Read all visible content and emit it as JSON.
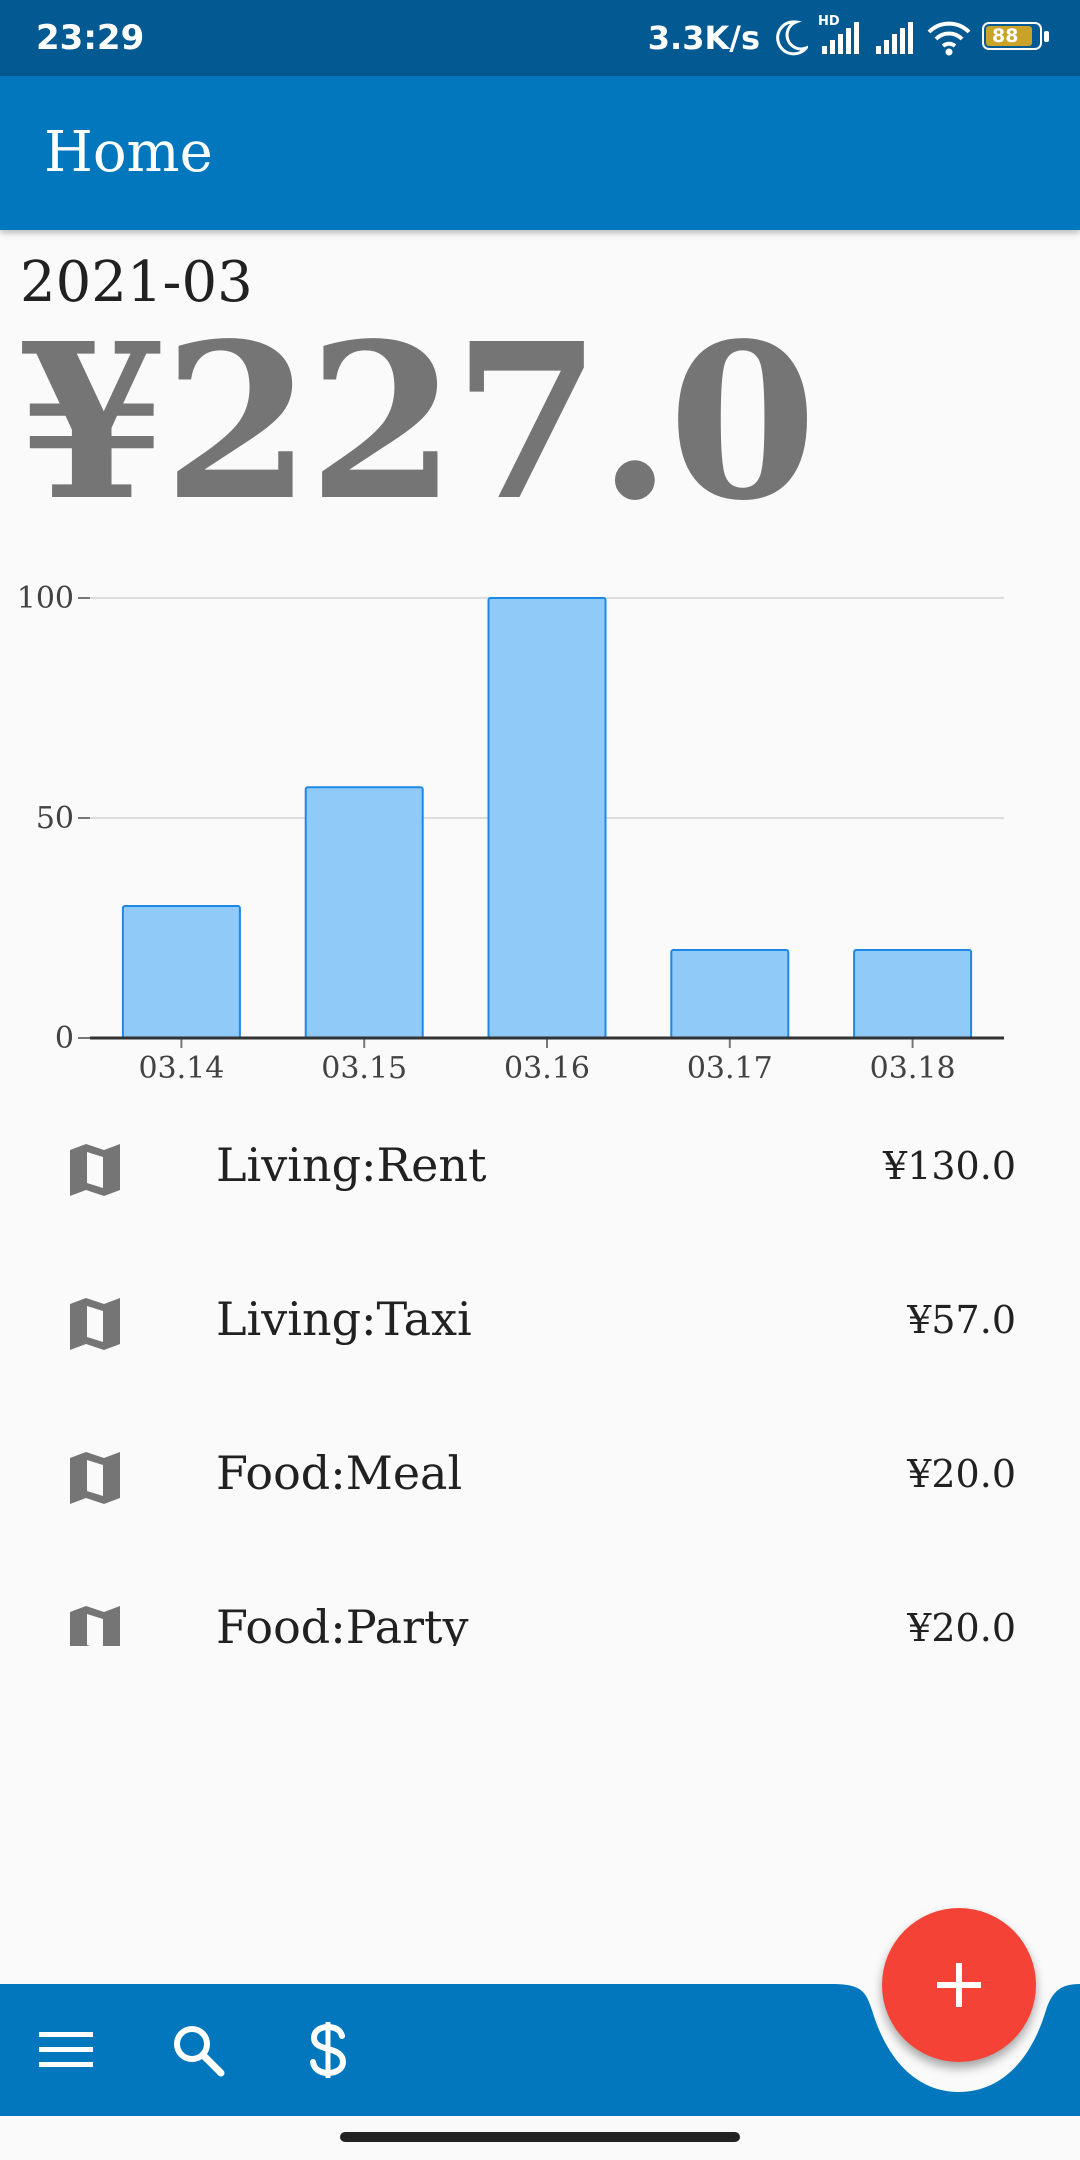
{
  "status_bar": {
    "time": "23:29",
    "net_speed": "3.3K/s",
    "hd_badge": "HD",
    "battery": "88",
    "icons": [
      "moon-icon",
      "signal-icon",
      "wifi-icon",
      "battery-icon"
    ]
  },
  "app_bar": {
    "title": "Home"
  },
  "summary": {
    "month": "2021-03",
    "total": "¥227.0"
  },
  "chart_data": {
    "type": "bar",
    "categories": [
      "03.14",
      "03.15",
      "03.16",
      "03.17",
      "03.18"
    ],
    "values": [
      30,
      57,
      100,
      20,
      20
    ],
    "ylim": [
      0,
      100
    ],
    "yticks": [
      "0",
      "50",
      "100"
    ],
    "grid": true,
    "colors": {
      "fill": "#90caf9",
      "stroke": "#1e88e5"
    }
  },
  "expenses": [
    {
      "name": "Living:Rent",
      "amount": "¥130.0",
      "icon": "map-icon"
    },
    {
      "name": "Living:Taxi",
      "amount": "¥57.0",
      "icon": "map-icon"
    },
    {
      "name": "Food:Meal",
      "amount": "¥20.0",
      "icon": "map-icon"
    },
    {
      "name": "Food:Party",
      "amount": "¥20.0",
      "icon": "map-icon"
    }
  ],
  "bottom_bar": {
    "icons": [
      "menu-icon",
      "search-icon",
      "dollar-icon"
    ],
    "fab_icon": "plus-icon"
  },
  "colors": {
    "primary": "#0277bd",
    "status": "#035a92",
    "fab": "#f44336"
  }
}
